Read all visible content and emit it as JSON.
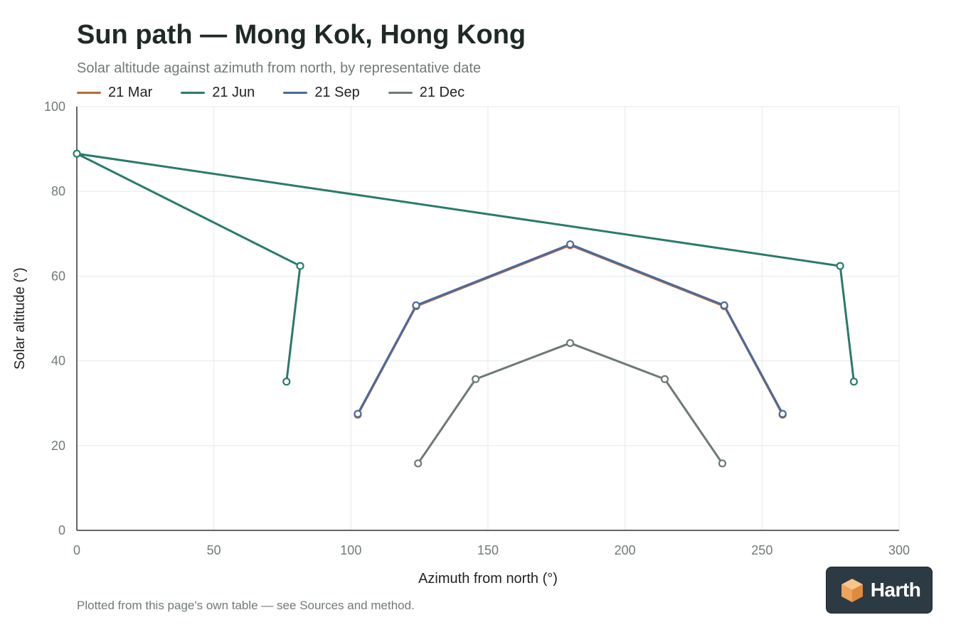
{
  "title": "Sun path — Mong Kok, Hong Kong",
  "subtitle": "Solar altitude against azimuth from north, by representative date",
  "footnote": "Plotted from this page's own table — see Sources and method.",
  "logo": {
    "text": "Harth",
    "icon": "cube-logo-icon"
  },
  "chart_data": {
    "type": "line",
    "xlabel": "Azimuth from north (°)",
    "ylabel": "Solar altitude (°)",
    "xlim": [
      0,
      300
    ],
    "ylim": [
      0,
      100
    ],
    "xticks": [
      0,
      50,
      100,
      150,
      200,
      250,
      300
    ],
    "yticks": [
      0,
      20,
      40,
      60,
      80,
      100
    ],
    "grid": true,
    "legend_position": "top-left",
    "series": [
      {
        "name": "21 Mar",
        "color": "#b86a3c",
        "points": [
          [
            102.5,
            27.3
          ],
          [
            123.8,
            52.9
          ],
          [
            180,
            67.3
          ],
          [
            236.2,
            52.9
          ],
          [
            257.5,
            27.3
          ]
        ]
      },
      {
        "name": "21 Jun",
        "color": "#2a7a6c",
        "points": [
          [
            76.5,
            35.1
          ],
          [
            81.5,
            62.4
          ],
          [
            0,
            88.9
          ],
          [
            278.5,
            62.4
          ],
          [
            283.5,
            35.1
          ]
        ]
      },
      {
        "name": "21 Sep",
        "color": "#4a6a9a",
        "points": [
          [
            102.5,
            27.5
          ],
          [
            123.8,
            53.1
          ],
          [
            180,
            67.5
          ],
          [
            236.2,
            53.1
          ],
          [
            257.5,
            27.5
          ]
        ]
      },
      {
        "name": "21 Dec",
        "color": "#6c7a74",
        "points": [
          [
            124.5,
            15.8
          ],
          [
            145.5,
            35.7
          ],
          [
            180,
            44.2
          ],
          [
            214.5,
            35.7
          ],
          [
            235.5,
            15.8
          ]
        ]
      }
    ]
  }
}
